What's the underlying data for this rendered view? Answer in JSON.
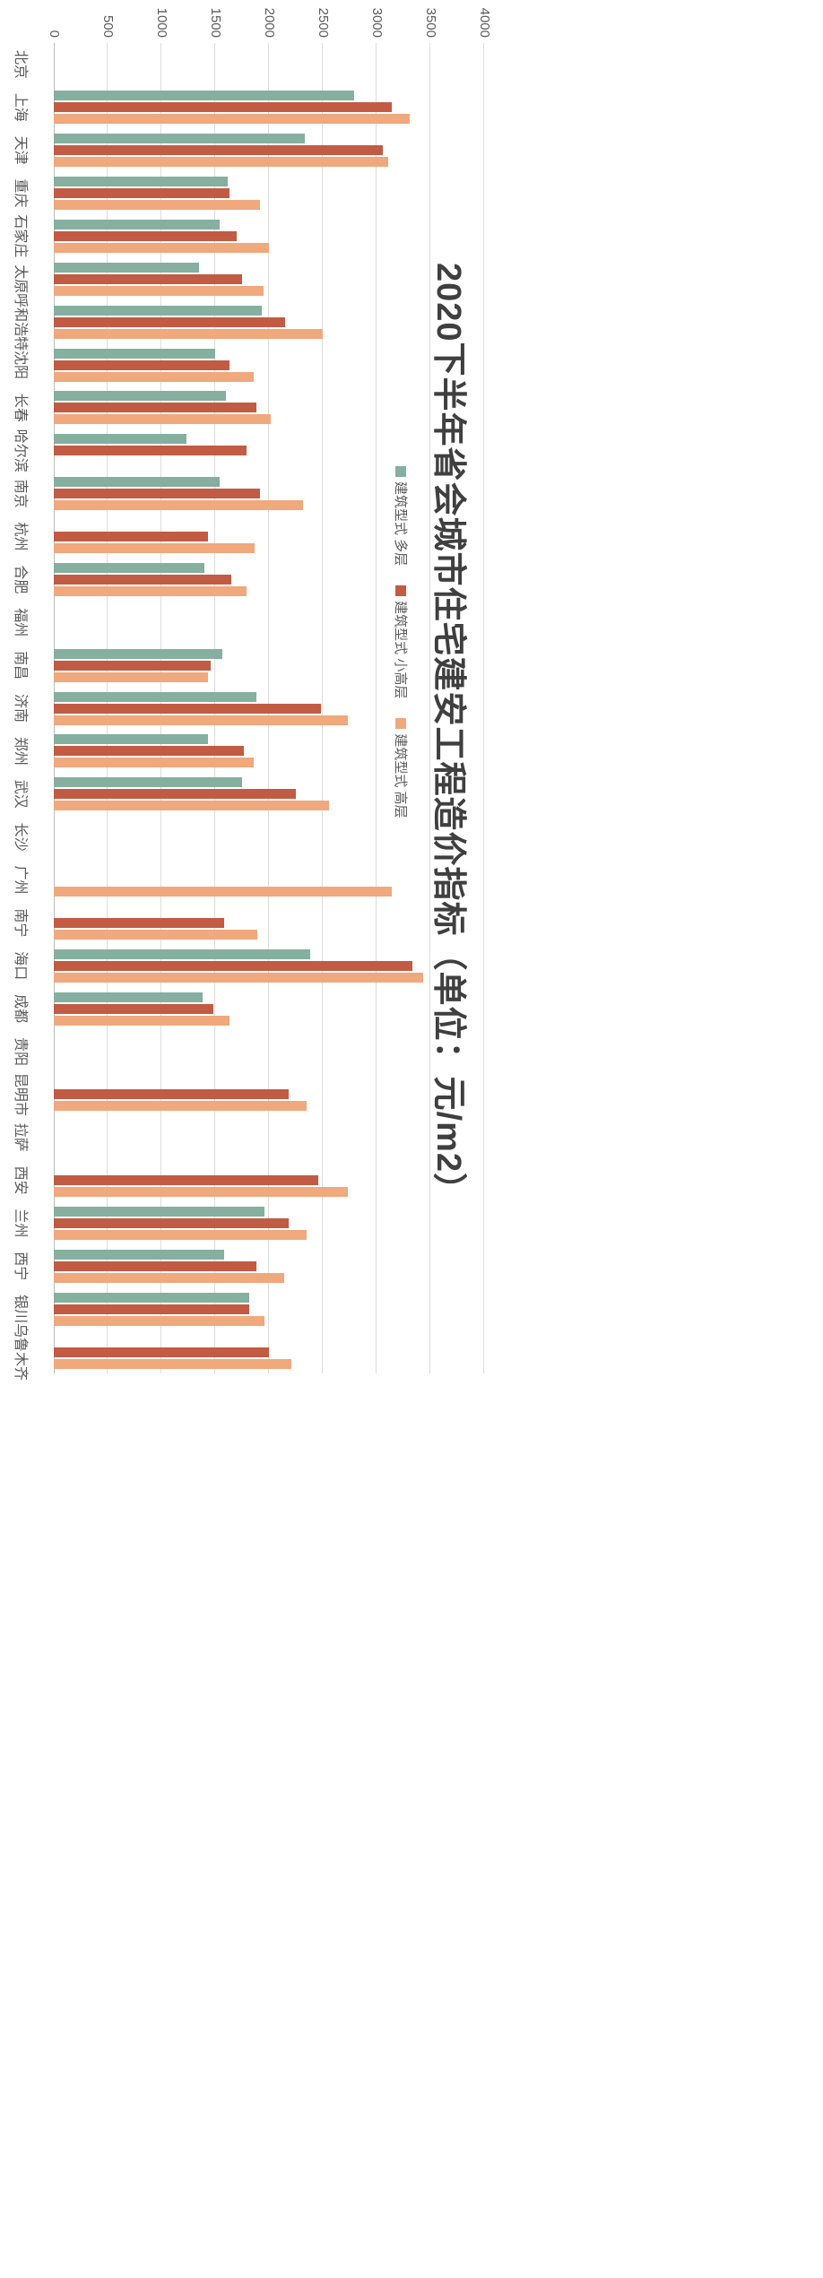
{
  "page": {
    "background": "#ffffff"
  },
  "chart_data": {
    "type": "bar",
    "title": "2020下半年省会城市住宅建安工程造价指标（单位：元/m2）",
    "categories": [
      "北京",
      "上海",
      "天津",
      "重庆",
      "石家庄",
      "太原",
      "呼和浩特",
      "沈阳",
      "长春",
      "哈尔滨",
      "南京",
      "杭州",
      "合肥",
      "福州",
      "南昌",
      "济南",
      "郑州",
      "武汉",
      "长沙",
      "广州",
      "南宁",
      "海口",
      "成都",
      "贵阳",
      "昆明市",
      "拉萨",
      "西安",
      "兰州",
      "西宁",
      "银川",
      "乌鲁木齐"
    ],
    "series": [
      {
        "name": "建筑型式 多层",
        "color": "#85AF9F",
        "values": [
          null,
          2790,
          2330,
          1620,
          1540,
          1350,
          1930,
          1500,
          1600,
          1230,
          1540,
          null,
          1400,
          null,
          1570,
          1880,
          1430,
          1750,
          null,
          null,
          null,
          2380,
          1380,
          null,
          null,
          null,
          null,
          1960,
          1580,
          1820,
          null
        ]
      },
      {
        "name": "建筑型式 小高层",
        "color": "#C25B43",
        "values": [
          null,
          3140,
          3060,
          1630,
          1700,
          1750,
          2150,
          1630,
          1880,
          1790,
          1920,
          1430,
          1650,
          null,
          1460,
          2480,
          1770,
          2250,
          null,
          null,
          1580,
          3330,
          1480,
          null,
          2180,
          null,
          2460,
          2180,
          1880,
          1820,
          2000
        ]
      },
      {
        "name": "建筑型式 高层",
        "color": "#F0A87D",
        "values": [
          null,
          3310,
          3110,
          1920,
          2000,
          1950,
          2500,
          1860,
          2020,
          null,
          2320,
          1870,
          1790,
          null,
          1430,
          2730,
          1860,
          2560,
          null,
          3140,
          1890,
          3430,
          1630,
          null,
          2350,
          null,
          2730,
          2350,
          2140,
          1960,
          2210
        ]
      }
    ],
    "axis": {
      "min": 0,
      "max": 4000,
      "step": 500,
      "ticks": [
        0,
        500,
        1000,
        1500,
        2000,
        2500,
        3000,
        3500,
        4000
      ]
    },
    "grid": true,
    "legend_position": "inside-plot-upper-area",
    "colors": {
      "gridline": "#dcdcdc",
      "axis_text": "#595959",
      "title_text": "#3f3f3f"
    }
  }
}
